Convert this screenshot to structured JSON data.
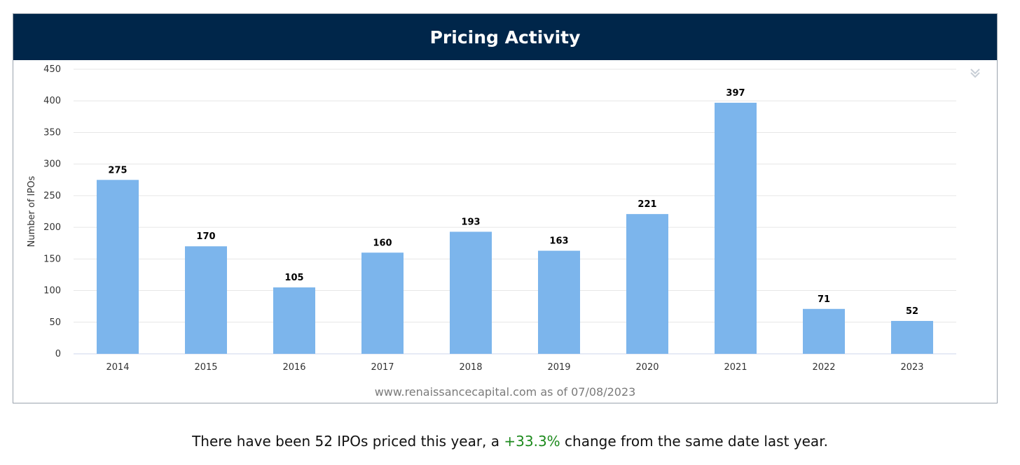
{
  "header": {
    "title": "Pricing Activity"
  },
  "chart_data": {
    "type": "bar",
    "title": "Pricing Activity",
    "xlabel": "",
    "ylabel": "Number of IPOs",
    "ylim": [
      0,
      450
    ],
    "yticks": [
      0,
      50,
      100,
      150,
      200,
      250,
      300,
      350,
      400,
      450
    ],
    "grid": true,
    "bar_color": "#7cb5ec",
    "categories": [
      "2014",
      "2015",
      "2016",
      "2017",
      "2018",
      "2019",
      "2020",
      "2021",
      "2022",
      "2023"
    ],
    "values": [
      275,
      170,
      105,
      160,
      193,
      163,
      221,
      397,
      71,
      52
    ],
    "data_labels": [
      "275",
      "170",
      "105",
      "160",
      "193",
      "163",
      "221",
      "397",
      "71",
      "52"
    ]
  },
  "chart_footer": {
    "source": "www.renaissancecapital.com as of 07/08/2023"
  },
  "menu": {
    "icon": "chevron-double-down-icon"
  },
  "summary": {
    "prefix": "There have been 52 IPOs priced this year, a ",
    "change": "+33.3%",
    "suffix": " change from the same date last year.",
    "change_color": "#1d8a1d"
  }
}
